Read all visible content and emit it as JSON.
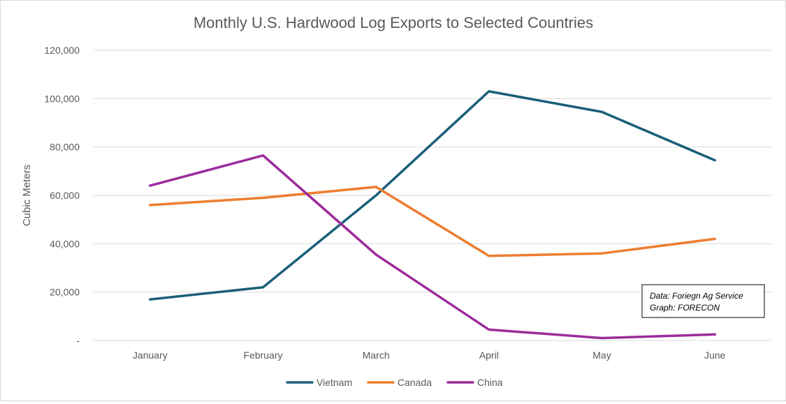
{
  "chart_data": {
    "type": "line",
    "title": "Monthly U.S. Hardwood Log Exports to Selected Countries",
    "xlabel": "",
    "ylabel": "Cubic Meters",
    "categories": [
      "January",
      "February",
      "March",
      "April",
      "May",
      "June"
    ],
    "ylim": [
      0,
      120000
    ],
    "yticks": [
      0,
      20000,
      40000,
      60000,
      80000,
      100000,
      120000
    ],
    "ytick_labels": [
      "-",
      "20,000",
      "40,000",
      "60,000",
      "80,000",
      "100,000",
      "120,000"
    ],
    "grid": true,
    "legend_position": "bottom",
    "series": [
      {
        "name": "Vietnam",
        "color": "#1a5f7a",
        "values": [
          17000,
          22000,
          60000,
          103000,
          94500,
          74500
        ]
      },
      {
        "name": "Canada",
        "color": "#ed7d31",
        "values": [
          56000,
          59000,
          63500,
          35000,
          36000,
          42000
        ]
      },
      {
        "name": "China",
        "color": "#9b2c9b",
        "values": [
          64000,
          76500,
          35500,
          4500,
          1000,
          2500
        ]
      }
    ],
    "annotation": {
      "line1": "Data: Foriegn Ag Service",
      "line2": "Graph: FORECON"
    }
  }
}
